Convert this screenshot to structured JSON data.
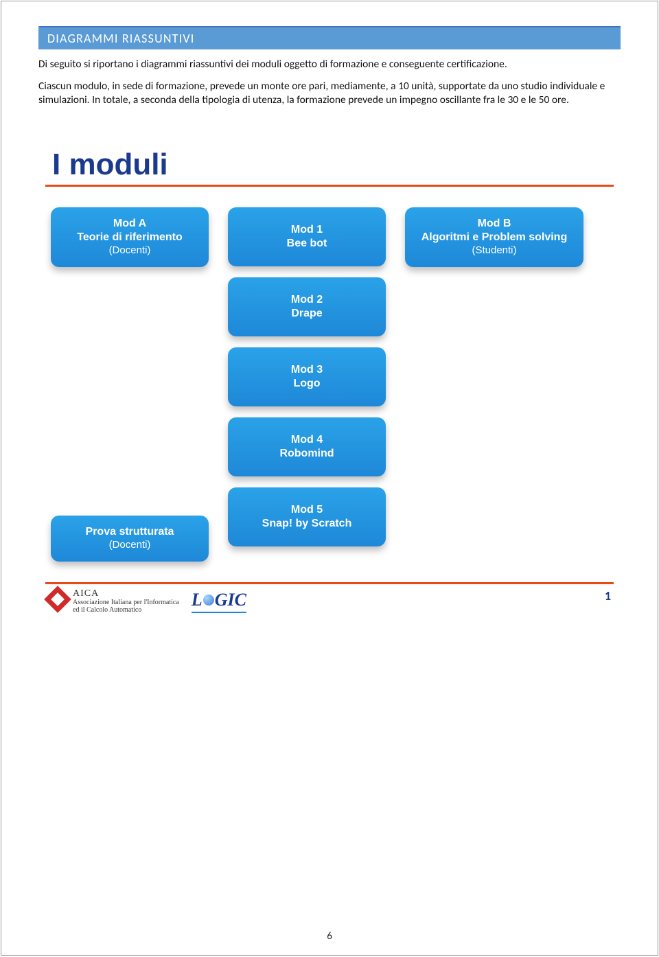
{
  "header": {
    "title": "DIAGRAMMI RIASSUNTIVI"
  },
  "paragraphs": {
    "p1": "Di seguito si riportano i diagrammi riassuntivi dei moduli oggetto di formazione e conseguente certificazione.",
    "p2": "Ciascun modulo, in sede di formazione, prevede un monte ore pari, mediamente, a 10 unità, supportate da uno studio individuale e simulazioni. In totale, a seconda della tipologia di utenza, la formazione prevede un impegno oscillante fra le 30 e le 50 ore."
  },
  "slide": {
    "title": "I moduli",
    "rule_color": "#e64a19",
    "title_color": "#1a3a8f",
    "title_fontsize": 44,
    "modules": {
      "left_top": {
        "line1": "Mod A",
        "line2": "Teorie di riferimento",
        "sub": "(Docenti)"
      },
      "left_bot": {
        "line1": "Prova strutturata",
        "sub": "(Docenti)"
      },
      "mid": [
        {
          "line1": "Mod 1",
          "line2": "Bee bot"
        },
        {
          "line1": "Mod 2",
          "line2": "Drape"
        },
        {
          "line1": "Mod 3",
          "line2": "Logo"
        },
        {
          "line1": "Mod 4",
          "line2": "Robomind"
        },
        {
          "line1": "Mod 5",
          "line2": "Snap! by Scratch"
        }
      ],
      "right_top": {
        "line1": "Mod B",
        "line2": "Algoritmi e Problem solving",
        "sub": "(Studenti)"
      }
    },
    "module_style": {
      "bg_from": "#2aa2e8",
      "bg_to": "#1e88d8",
      "text_color": "#ffffff",
      "radius": 12,
      "shadow": "0 6px 10px rgba(0,0,0,0.25)",
      "fontsize": 16
    },
    "footer": {
      "aica_name": "AICA",
      "aica_line1": "Associazione Italiana per l'Informatica",
      "aica_line2": "ed il Calcolo Automatico",
      "logic_prefix": "L",
      "logic_suffix": "GIC",
      "page_num": "1"
    }
  },
  "page_number": "6"
}
